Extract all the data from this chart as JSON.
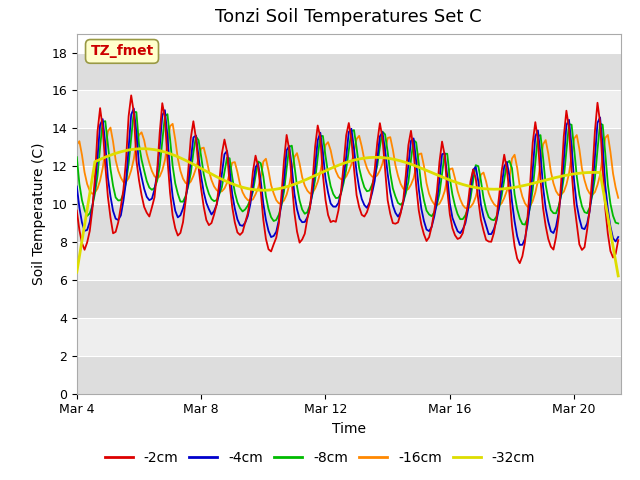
{
  "title": "Tonzi Soil Temperatures Set C",
  "xlabel": "Time",
  "ylabel": "Soil Temperature (C)",
  "ylim": [
    0,
    19
  ],
  "yticks": [
    0,
    2,
    4,
    6,
    8,
    10,
    12,
    14,
    16,
    18
  ],
  "x_tick_labels": [
    "Mar 4",
    "Mar 8",
    "Mar 12",
    "Mar 16",
    "Mar 20"
  ],
  "x_tick_positions": [
    0,
    4,
    8,
    12,
    16
  ],
  "xlim_days": 17.5,
  "annotation_text": "TZ_fmet",
  "annotation_color": "#cc0000",
  "annotation_bg": "#ffffcc",
  "annotation_border": "#999944",
  "colors": {
    "-2cm": "#dd0000",
    "-4cm": "#0000cc",
    "-8cm": "#00bb00",
    "-16cm": "#ff8800",
    "-32cm": "#dddd00"
  },
  "line_widths": {
    "-2cm": 1.3,
    "-4cm": 1.3,
    "-8cm": 1.3,
    "-16cm": 1.3,
    "-32cm": 2.0
  },
  "bg_color": "#ffffff",
  "plot_bg_light": "#eeeeee",
  "plot_bg_dark": "#dddddd",
  "grid_color": "#ffffff",
  "title_fontsize": 13,
  "label_fontsize": 10,
  "tick_fontsize": 9,
  "legend_fontsize": 10
}
